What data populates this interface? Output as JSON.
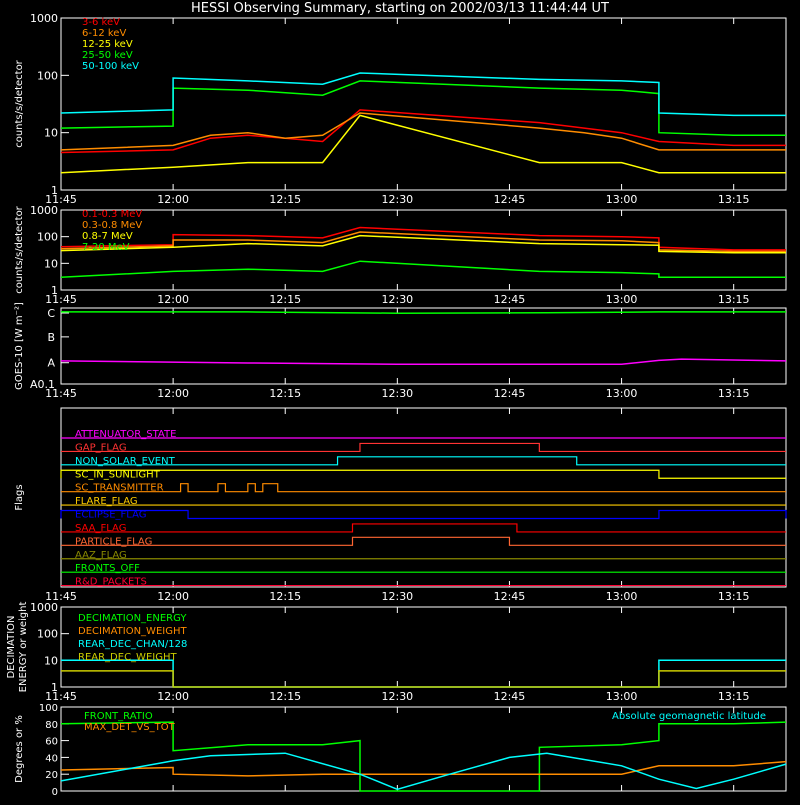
{
  "title": "HESSI Observing Summary, starting on 2002/03/13 11:44:44 UT",
  "time_ticks": [
    "11:45",
    "12:00",
    "12:15",
    "12:30",
    "12:45",
    "13:00",
    "13:15"
  ],
  "chart_data": [
    {
      "type": "line",
      "ylabel": "counts/s/detector",
      "yscale": "log",
      "ylim": [
        1,
        1000
      ],
      "ytick_labels": [
        "1",
        "10",
        "100",
        "1000"
      ],
      "gaps": [
        [
          "12:25",
          "12:49"
        ]
      ],
      "series": [
        {
          "name": "3-6 keV",
          "color": "#ff0000",
          "points": [
            [
              "11:45",
              4.5
            ],
            [
              "12:00",
              5
            ],
            [
              "12:05",
              8
            ],
            [
              "12:10",
              9
            ],
            [
              "12:15",
              8
            ],
            [
              "12:20",
              7
            ],
            [
              "12:25",
              25
            ],
            [
              "12:49",
              15
            ],
            [
              "12:55",
              12
            ],
            [
              "13:00",
              10
            ],
            [
              "13:05",
              7
            ],
            [
              "13:15",
              6
            ],
            [
              "13:22",
              6
            ]
          ]
        },
        {
          "name": "6-12 keV",
          "color": "#ff8c00",
          "points": [
            [
              "11:45",
              5
            ],
            [
              "12:00",
              6
            ],
            [
              "12:05",
              9
            ],
            [
              "12:10",
              10
            ],
            [
              "12:15",
              8
            ],
            [
              "12:20",
              9
            ],
            [
              "12:25",
              22
            ],
            [
              "12:49",
              12
            ],
            [
              "12:55",
              10
            ],
            [
              "13:00",
              8
            ],
            [
              "13:05",
              5
            ],
            [
              "13:15",
              5
            ],
            [
              "13:22",
              5
            ]
          ]
        },
        {
          "name": "12-25 keV",
          "color": "#ffff00",
          "points": [
            [
              "11:45",
              2
            ],
            [
              "12:00",
              2.5
            ],
            [
              "12:10",
              3
            ],
            [
              "12:20",
              3
            ],
            [
              "12:25",
              20
            ],
            [
              "12:49",
              3
            ],
            [
              "13:00",
              3
            ],
            [
              "13:05",
              2
            ],
            [
              "13:22",
              2
            ]
          ]
        },
        {
          "name": "25-50 keV",
          "color": "#00ff00",
          "points": [
            [
              "11:45",
              12
            ],
            [
              "12:00",
              13
            ],
            [
              "12:00",
              60
            ],
            [
              "12:10",
              55
            ],
            [
              "12:20",
              45
            ],
            [
              "12:25",
              80
            ],
            [
              "12:49",
              60
            ],
            [
              "13:00",
              55
            ],
            [
              "13:05",
              48
            ],
            [
              "13:05",
              10
            ],
            [
              "13:15",
              9
            ],
            [
              "13:22",
              9
            ]
          ]
        },
        {
          "name": "50-100 keV",
          "color": "#00ffff",
          "points": [
            [
              "11:45",
              22
            ],
            [
              "12:00",
              25
            ],
            [
              "12:00",
              90
            ],
            [
              "12:10",
              80
            ],
            [
              "12:20",
              70
            ],
            [
              "12:25",
              110
            ],
            [
              "12:49",
              85
            ],
            [
              "13:00",
              80
            ],
            [
              "13:05",
              75
            ],
            [
              "13:05",
              22
            ],
            [
              "13:15",
              20
            ],
            [
              "13:22",
              20
            ]
          ]
        }
      ]
    },
    {
      "type": "line",
      "ylabel": "counts/s/detector",
      "yscale": "log",
      "ylim": [
        1,
        1000
      ],
      "ytick_labels": [
        "1",
        "10",
        "100",
        "1000"
      ],
      "gaps": [
        [
          "12:25",
          "12:49"
        ]
      ],
      "series": [
        {
          "name": "0.1-0.3 MeV",
          "color": "#ff0000",
          "points": [
            [
              "11:45",
              42
            ],
            [
              "12:00",
              50
            ],
            [
              "12:00",
              120
            ],
            [
              "12:10",
              110
            ],
            [
              "12:20",
              90
            ],
            [
              "12:25",
              220
            ],
            [
              "12:49",
              110
            ],
            [
              "13:00",
              100
            ],
            [
              "13:05",
              90
            ],
            [
              "13:05",
              40
            ],
            [
              "13:15",
              32
            ],
            [
              "13:22",
              32
            ]
          ]
        },
        {
          "name": "0.3-0.8 MeV",
          "color": "#ff8c00",
          "points": [
            [
              "11:45",
              35
            ],
            [
              "12:00",
              45
            ],
            [
              "12:00",
              75
            ],
            [
              "12:10",
              75
            ],
            [
              "12:20",
              60
            ],
            [
              "12:25",
              150
            ],
            [
              "12:49",
              75
            ],
            [
              "13:00",
              70
            ],
            [
              "13:05",
              60
            ],
            [
              "13:05",
              32
            ],
            [
              "13:15",
              28
            ],
            [
              "13:22",
              28
            ]
          ]
        },
        {
          "name": "0.8-7 MeV",
          "color": "#ffff00",
          "points": [
            [
              "11:45",
              30
            ],
            [
              "12:00",
              40
            ],
            [
              "12:10",
              55
            ],
            [
              "12:20",
              45
            ],
            [
              "12:25",
              110
            ],
            [
              "12:49",
              55
            ],
            [
              "13:00",
              50
            ],
            [
              "13:05",
              48
            ],
            [
              "13:05",
              28
            ],
            [
              "13:15",
              25
            ],
            [
              "13:22",
              25
            ]
          ]
        },
        {
          "name": "7-20 MeV",
          "color": "#00ff00",
          "points": [
            [
              "11:45",
              3
            ],
            [
              "12:00",
              5
            ],
            [
              "12:10",
              6
            ],
            [
              "12:20",
              5
            ],
            [
              "12:25",
              12
            ],
            [
              "12:49",
              5
            ],
            [
              "13:00",
              4.5
            ],
            [
              "13:05",
              4
            ],
            [
              "13:05",
              3
            ],
            [
              "13:15",
              3
            ],
            [
              "13:22",
              3
            ]
          ]
        }
      ]
    },
    {
      "type": "line",
      "ylabel": "GOES-10 [W m⁻²]",
      "ylim": [
        0.1,
        3
      ],
      "ytick_labels": [
        "A0.1",
        "A",
        "B",
        "C"
      ],
      "series": [
        {
          "name": "",
          "color": "#00ff00",
          "points": [
            [
              "11:45",
              2.85
            ],
            [
              "12:10",
              2.85
            ],
            [
              "12:30",
              2.8
            ],
            [
              "12:50",
              2.82
            ],
            [
              "13:05",
              2.85
            ],
            [
              "13:22",
              2.85
            ]
          ]
        },
        {
          "name": "",
          "color": "#ff00ff",
          "points": [
            [
              "11:45",
              0.98
            ],
            [
              "12:10",
              0.9
            ],
            [
              "12:30",
              0.85
            ],
            [
              "12:50",
              0.85
            ],
            [
              "13:00",
              0.85
            ],
            [
              "13:05",
              1.0
            ],
            [
              "13:08",
              1.05
            ],
            [
              "13:22",
              0.98
            ]
          ]
        }
      ]
    },
    {
      "type": "line",
      "ylabel": "Flags",
      "flags": [
        {
          "name": "ATTENUATOR_STATE",
          "color": "#ff00ff",
          "on": []
        },
        {
          "name": "GAP_FLAG",
          "color": "#ff3333",
          "on": [
            [
              "12:25",
              "12:49"
            ]
          ]
        },
        {
          "name": "NON_SOLAR_EVENT",
          "color": "#00ffff",
          "on": [
            [
              "12:22",
              "12:54"
            ]
          ]
        },
        {
          "name": "SC_IN_SUNLIGHT",
          "color": "#ffff00",
          "on": [
            [
              "11:45",
              "13:05"
            ]
          ]
        },
        {
          "name": "SC_TRANSMITTER",
          "color": "#ff8c00",
          "on": [
            [
              "12:01",
              "12:02"
            ],
            [
              "12:06",
              "12:07"
            ],
            [
              "12:10",
              "12:11"
            ],
            [
              "12:12",
              "12:14"
            ]
          ]
        },
        {
          "name": "FLARE_FLAG",
          "color": "#ffcc00",
          "on": []
        },
        {
          "name": "ECLIPSE_FLAG",
          "color": "#0000ff",
          "on": [
            [
              "11:45",
              "12:02"
            ],
            [
              "13:05",
              "13:22"
            ]
          ]
        },
        {
          "name": "SAA_FLAG",
          "color": "#ff0000",
          "on": [
            [
              "12:24",
              "12:46"
            ]
          ]
        },
        {
          "name": "PARTICLE_FLAG",
          "color": "#ff6633",
          "on": [
            [
              "12:24",
              "12:45"
            ]
          ]
        },
        {
          "name": "AAZ_FLAG",
          "color": "#888800",
          "on": []
        },
        {
          "name": "FRONTS_OFF",
          "color": "#00ff00",
          "on": []
        },
        {
          "name": "R&D_PACKETS",
          "color": "#ff0033",
          "on": []
        }
      ]
    },
    {
      "type": "line",
      "ylabel": "DECIMATION ENERGY or weight",
      "yscale": "log",
      "ylim": [
        1,
        1000
      ],
      "ytick_labels": [
        "1",
        "10",
        "100",
        "1000"
      ],
      "series": [
        {
          "name": "DECIMATION_ENERGY",
          "color": "#00ff00",
          "points": []
        },
        {
          "name": "DECIMATION_WEIGHT",
          "color": "#ff8c00",
          "points": []
        },
        {
          "name": "REAR_DEC_CHAN/128",
          "color": "#00ffff",
          "points": [
            [
              "11:45",
              10
            ],
            [
              "12:00",
              10
            ],
            [
              "12:00",
              1
            ],
            [
              "13:05",
              1
            ],
            [
              "13:05",
              10
            ],
            [
              "13:22",
              10
            ]
          ]
        },
        {
          "name": "REAR_DEC_WEIGHT",
          "color": "#cccc00",
          "points": [
            [
              "11:45",
              4
            ],
            [
              "12:00",
              4
            ],
            [
              "12:00",
              1
            ],
            [
              "13:05",
              1
            ],
            [
              "13:05",
              4
            ],
            [
              "13:22",
              4
            ]
          ]
        }
      ]
    },
    {
      "type": "line",
      "ylabel": "Degrees or %",
      "ylim": [
        0,
        100
      ],
      "ytick_labels": [
        "0",
        "20",
        "40",
        "60",
        "80",
        "100"
      ],
      "series": [
        {
          "name": "FRONT_RATIO",
          "color": "#00ff00",
          "points": [
            [
              "11:45",
              80
            ],
            [
              "12:00",
              82
            ],
            [
              "12:00",
              48
            ],
            [
              "12:10",
              55
            ],
            [
              "12:20",
              55
            ],
            [
              "12:25",
              60
            ],
            [
              "12:25",
              0
            ],
            [
              "12:49",
              0
            ],
            [
              "12:49",
              52
            ],
            [
              "13:00",
              55
            ],
            [
              "13:05",
              60
            ],
            [
              "13:05",
              80
            ],
            [
              "13:15",
              80
            ],
            [
              "13:22",
              82
            ]
          ]
        },
        {
          "name": "",
          "color": "#ff8c00",
          "points": [
            [
              "11:45",
              25
            ],
            [
              "12:00",
              28
            ],
            [
              "12:00",
              20
            ],
            [
              "12:10",
              18
            ],
            [
              "12:20",
              20
            ],
            [
              "12:25",
              20
            ],
            [
              "12:49",
              20
            ],
            [
              "13:00",
              20
            ],
            [
              "13:05",
              30
            ],
            [
              "13:15",
              30
            ],
            [
              "13:22",
              35
            ]
          ]
        },
        {
          "name": "MAX_DET_VS_TOT",
          "color": "#ff8c00",
          "points": []
        },
        {
          "name": "Absolute geomagnetic latitude",
          "color": "#00ffff",
          "points": [
            [
              "11:45",
              12
            ],
            [
              "11:55",
              28
            ],
            [
              "12:00",
              36
            ],
            [
              "12:05",
              42
            ],
            [
              "12:15",
              45
            ],
            [
              "12:25",
              20
            ],
            [
              "12:30",
              2
            ],
            [
              "12:37",
              20
            ],
            [
              "12:45",
              40
            ],
            [
              "12:50",
              45
            ],
            [
              "13:00",
              30
            ],
            [
              "13:05",
              14
            ],
            [
              "13:10",
              3
            ],
            [
              "13:15",
              14
            ],
            [
              "13:22",
              32
            ]
          ]
        }
      ]
    }
  ]
}
